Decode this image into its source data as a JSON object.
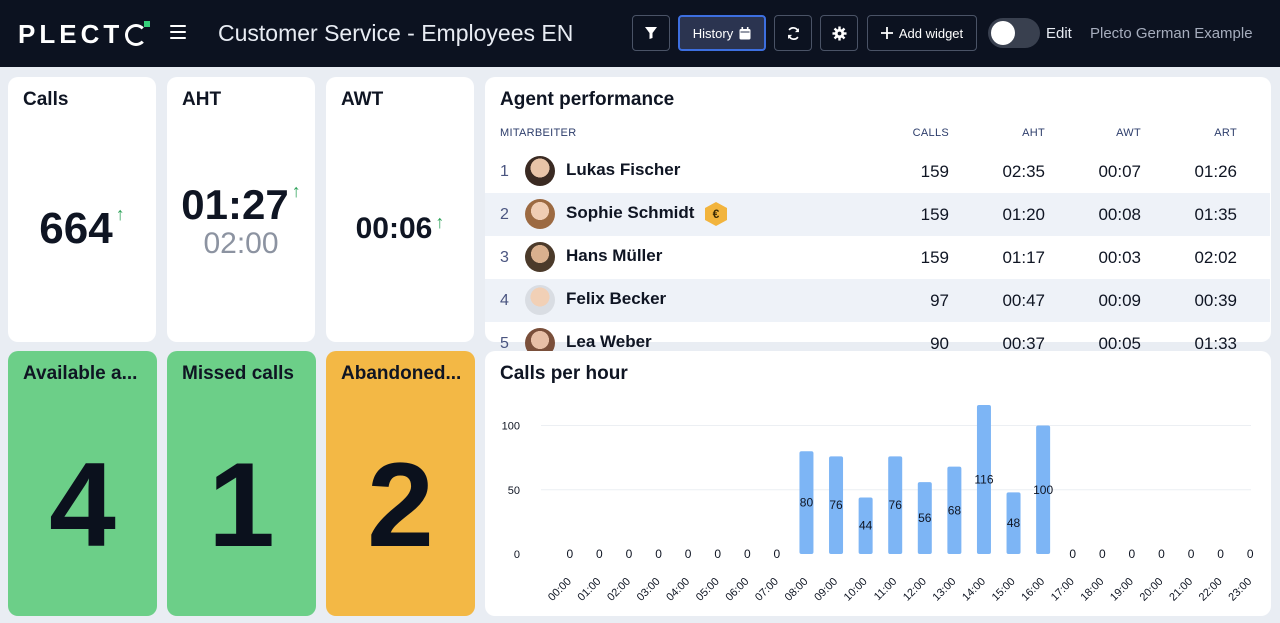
{
  "header": {
    "logo": "PLECT",
    "title": "Customer Service - Employees EN",
    "history_label": "History",
    "add_widget_label": "Add widget",
    "edit_label": "Edit",
    "account_name": "Plecto German Example"
  },
  "widgets": {
    "calls": {
      "title": "Calls",
      "value": "664",
      "arrow": "↑"
    },
    "aht": {
      "title": "AHT",
      "value": "01:27",
      "target": "02:00",
      "arrow": "↑"
    },
    "awt": {
      "title": "AWT",
      "value": "00:06",
      "arrow": "↑"
    },
    "available": {
      "title": "Available a...",
      "value": "4",
      "color": "#6ccf88"
    },
    "missed": {
      "title": "Missed calls",
      "value": "1",
      "color": "#6ccf88"
    },
    "abandoned": {
      "title": "Abandoned...",
      "value": "2",
      "color": "#f3b845"
    }
  },
  "agent_performance": {
    "title": "Agent performance",
    "columns": [
      "MITARBEITER",
      "CALLS",
      "AHT",
      "AWT",
      "ART"
    ],
    "rows": [
      {
        "rank": "1",
        "name": "Lukas Fischer",
        "calls": "159",
        "aht": "02:35",
        "awt": "00:07",
        "art": "01:26"
      },
      {
        "rank": "2",
        "name": "Sophie Schmidt",
        "calls": "159",
        "aht": "01:20",
        "awt": "00:08",
        "art": "01:35",
        "badge": "€"
      },
      {
        "rank": "3",
        "name": "Hans Müller",
        "calls": "159",
        "aht": "01:17",
        "awt": "00:03",
        "art": "02:02"
      },
      {
        "rank": "4",
        "name": "Felix Becker",
        "calls": "97",
        "aht": "00:47",
        "awt": "00:09",
        "art": "00:39"
      },
      {
        "rank": "5",
        "name": "Lea Weber",
        "calls": "90",
        "aht": "00:37",
        "awt": "00:05",
        "art": "01:33"
      }
    ]
  },
  "calls_per_hour": {
    "title": "Calls per hour"
  },
  "chart_data": {
    "type": "bar",
    "title": "Calls per hour",
    "categories": [
      "00:00",
      "01:00",
      "02:00",
      "03:00",
      "04:00",
      "05:00",
      "06:00",
      "07:00",
      "08:00",
      "09:00",
      "10:00",
      "11:00",
      "12:00",
      "13:00",
      "14:00",
      "15:00",
      "16:00",
      "17:00",
      "18:00",
      "19:00",
      "20:00",
      "21:00",
      "22:00",
      "23:00"
    ],
    "values": [
      0,
      0,
      0,
      0,
      0,
      0,
      0,
      0,
      80,
      76,
      44,
      76,
      56,
      68,
      116,
      48,
      100,
      0,
      0,
      0,
      0,
      0,
      0,
      0
    ],
    "yticks": [
      0,
      50,
      100
    ],
    "ylim": [
      0,
      116
    ],
    "grid": true,
    "bar_color": "#7db5f5"
  }
}
